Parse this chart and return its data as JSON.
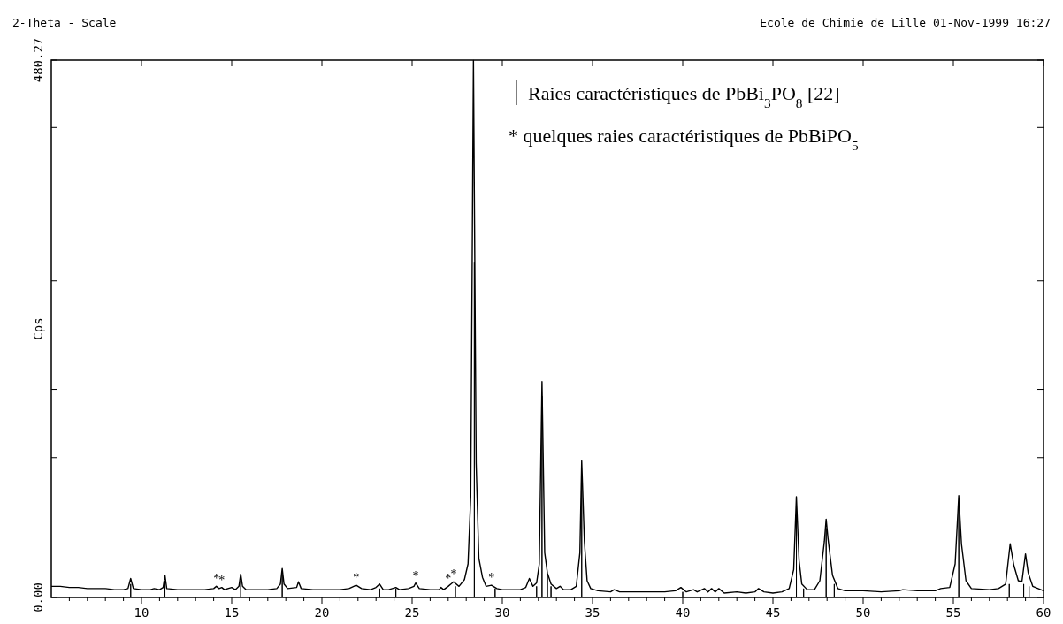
{
  "chart_data": {
    "type": "line",
    "xlabel": "2-Theta - Scale",
    "ylabel": "Cps",
    "xlim": [
      5,
      60
    ],
    "xticks": [
      {
        "value": 6,
        "label": null
      },
      {
        "value": 7,
        "label": null
      },
      {
        "value": 8,
        "label": null
      },
      {
        "value": 9,
        "label": null
      },
      10,
      {
        "value": 11,
        "label": null
      },
      {
        "value": 12,
        "label": null
      },
      {
        "value": 13,
        "label": null
      },
      {
        "value": 14,
        "label": null
      },
      15,
      {
        "value": 16,
        "label": null
      },
      {
        "value": 17,
        "label": null
      },
      {
        "value": 18,
        "label": null
      },
      {
        "value": 19,
        "label": null
      },
      20,
      {
        "value": 21,
        "label": null
      },
      {
        "value": 22,
        "label": null
      },
      {
        "value": 23,
        "label": null
      },
      {
        "value": 24,
        "label": null
      },
      25,
      {
        "value": 26,
        "label": null
      },
      {
        "value": 27,
        "label": null
      },
      {
        "value": 28,
        "label": null
      },
      {
        "value": 29,
        "label": null
      },
      30,
      {
        "value": 31,
        "label": null
      },
      {
        "value": 32,
        "label": null
      },
      {
        "value": 33,
        "label": null
      },
      {
        "value": 34,
        "label": null
      },
      35,
      {
        "value": 36,
        "label": null
      },
      {
        "value": 37,
        "label": null
      },
      {
        "value": 38,
        "label": null
      },
      {
        "value": 39,
        "label": null
      },
      40,
      {
        "value": 41,
        "label": null
      },
      {
        "value": 42,
        "label": null
      },
      {
        "value": 43,
        "label": null
      },
      {
        "value": 44,
        "label": null
      },
      45,
      {
        "value": 46,
        "label": null
      },
      {
        "value": 47,
        "label": null
      },
      {
        "value": 48,
        "label": null
      },
      {
        "value": 49,
        "label": null
      },
      50,
      {
        "value": 51,
        "label": null
      },
      {
        "value": 52,
        "label": null
      },
      {
        "value": 53,
        "label": null
      },
      {
        "value": 54,
        "label": null
      },
      55,
      {
        "value": 56,
        "label": null
      },
      {
        "value": 57,
        "label": null
      },
      {
        "value": 58,
        "label": null
      },
      {
        "value": 59,
        "label": null
      },
      60
    ],
    "ylim": [
      0,
      480.27
    ],
    "yticks": [
      {
        "value": 0,
        "label": "0.00"
      },
      {
        "value": 125,
        "label": null
      },
      {
        "value": 186,
        "label": null
      },
      {
        "value": 283,
        "label": null
      },
      {
        "value": 420,
        "label": null
      },
      480.27
    ],
    "legend": "top",
    "grid": false,
    "marker": "none",
    "line_style": "solid",
    "series": [
      {
        "color": "#000000",
        "x": [
          5,
          5.5,
          6,
          6.5,
          7,
          7.5,
          8,
          8.5,
          9,
          9.25,
          9.4,
          9.55,
          10,
          10.5,
          10.7,
          11,
          11.2,
          11.3,
          11.4,
          12,
          12.5,
          13,
          13.5,
          14,
          14.15,
          14.3,
          14.45,
          14.6,
          15,
          15.2,
          15.4,
          15.5,
          15.6,
          15.8,
          16.5,
          17,
          17.5,
          17.7,
          17.8,
          17.9,
          18.1,
          18.6,
          18.7,
          18.85,
          19.5,
          20,
          20.5,
          21,
          21.5,
          21.9,
          22.2,
          22.7,
          23,
          23.2,
          23.4,
          23.7,
          23.9,
          24.1,
          24.3,
          24.8,
          25.1,
          25.2,
          25.4,
          26,
          26.5,
          26.6,
          26.75,
          27,
          27.3,
          27.6,
          27.9,
          28.1,
          28.25,
          28.4,
          28.55,
          28.7,
          28.9,
          29.1,
          29.4,
          29.7,
          30,
          30.5,
          31,
          31.3,
          31.5,
          31.7,
          31.9,
          32.05,
          32.2,
          32.35,
          32.5,
          32.7,
          33,
          33.2,
          33.4,
          33.8,
          34.1,
          34.3,
          34.4,
          34.55,
          34.7,
          34.9,
          35.3,
          36,
          36.2,
          36.5,
          37,
          37.5,
          38,
          38.5,
          39,
          39.6,
          39.9,
          40.2,
          40.6,
          40.8,
          41.2,
          41.4,
          41.6,
          41.8,
          42,
          42.3,
          43,
          43.5,
          44,
          44.2,
          44.5,
          45,
          45.5,
          45.9,
          46.15,
          46.3,
          46.45,
          46.6,
          46.9,
          47.3,
          47.6,
          47.85,
          47.95,
          48.05,
          48.3,
          48.6,
          49,
          50,
          51,
          52,
          52.2,
          53,
          54,
          54.3,
          54.8,
          55.1,
          55.3,
          55.45,
          55.7,
          56,
          57,
          57.5,
          57.9,
          58.15,
          58.35,
          58.6,
          58.8,
          59,
          59.15,
          59.4,
          60
        ],
        "values": [
          10,
          10,
          9,
          9,
          8,
          8,
          8,
          7,
          7,
          8,
          17,
          8,
          7,
          7,
          8,
          7,
          9,
          20,
          8,
          7,
          7,
          7,
          7,
          8,
          10,
          8,
          9,
          7,
          9,
          7,
          10,
          21,
          10,
          7,
          7,
          7,
          8,
          12,
          26,
          12,
          8,
          9,
          14,
          8,
          7,
          7,
          7,
          7,
          8,
          11,
          8,
          7,
          9,
          12,
          7,
          7,
          8,
          9,
          7,
          8,
          10,
          13,
          8,
          7,
          7,
          9,
          7,
          10,
          14,
          10,
          16,
          30,
          90,
          480,
          120,
          35,
          18,
          10,
          11,
          8,
          7,
          7,
          7,
          9,
          17,
          10,
          13,
          30,
          193,
          40,
          22,
          12,
          8,
          10,
          7,
          7,
          10,
          40,
          122,
          50,
          15,
          8,
          6,
          5,
          7,
          5,
          5,
          5,
          5,
          5,
          5,
          6,
          9,
          5,
          7,
          5,
          8,
          5,
          8,
          5,
          8,
          4,
          5,
          4,
          5,
          8,
          5,
          4,
          5,
          8,
          25,
          90,
          33,
          12,
          7,
          7,
          15,
          50,
          70,
          53,
          20,
          8,
          6,
          6,
          5,
          6,
          7,
          6,
          6,
          8,
          9,
          30,
          91,
          48,
          15,
          8,
          7,
          8,
          12,
          48,
          29,
          15,
          14,
          39,
          22,
          10,
          6
        ]
      },
      {
        "type": "bar",
        "name": "Raies caractéristiques de PbBi$_{3}$PO$_{8}$ [22]",
        "color": "#000000",
        "x": [
          9.4,
          11.3,
          15.5,
          17.8,
          23.2,
          24.1,
          27.4,
          28.45,
          29.6,
          31.9,
          32.2,
          32.5,
          32.7,
          34.4,
          40,
          46.3,
          46.7,
          47.95,
          48.4,
          55.3,
          58.1,
          58.9,
          59.2
        ],
        "values": [
          12,
          15,
          15,
          20,
          8,
          8,
          10,
          300,
          8,
          10,
          180,
          20,
          10,
          110,
          5,
          80,
          8,
          62,
          12,
          82,
          12,
          12,
          10
        ]
      }
    ],
    "annotations": [
      "Ecole de Chimie de Lille 01-Nov-1999 16:27",
      "* quelques raies caractéristiques de PbBiPO$_{5}$",
      {
        "text": "*",
        "x": 14.15,
        "y": 10
      },
      {
        "text": "*",
        "x": 14.45,
        "y": 9
      },
      {
        "text": "*",
        "x": 21.9,
        "y": 11
      },
      {
        "text": "*",
        "x": 25.2,
        "y": 13
      },
      {
        "text": "*",
        "x": 27,
        "y": 10
      },
      {
        "text": "*",
        "x": 27.3,
        "y": 14
      },
      {
        "text": "*",
        "x": 29.4,
        "y": 11
      }
    ]
  }
}
